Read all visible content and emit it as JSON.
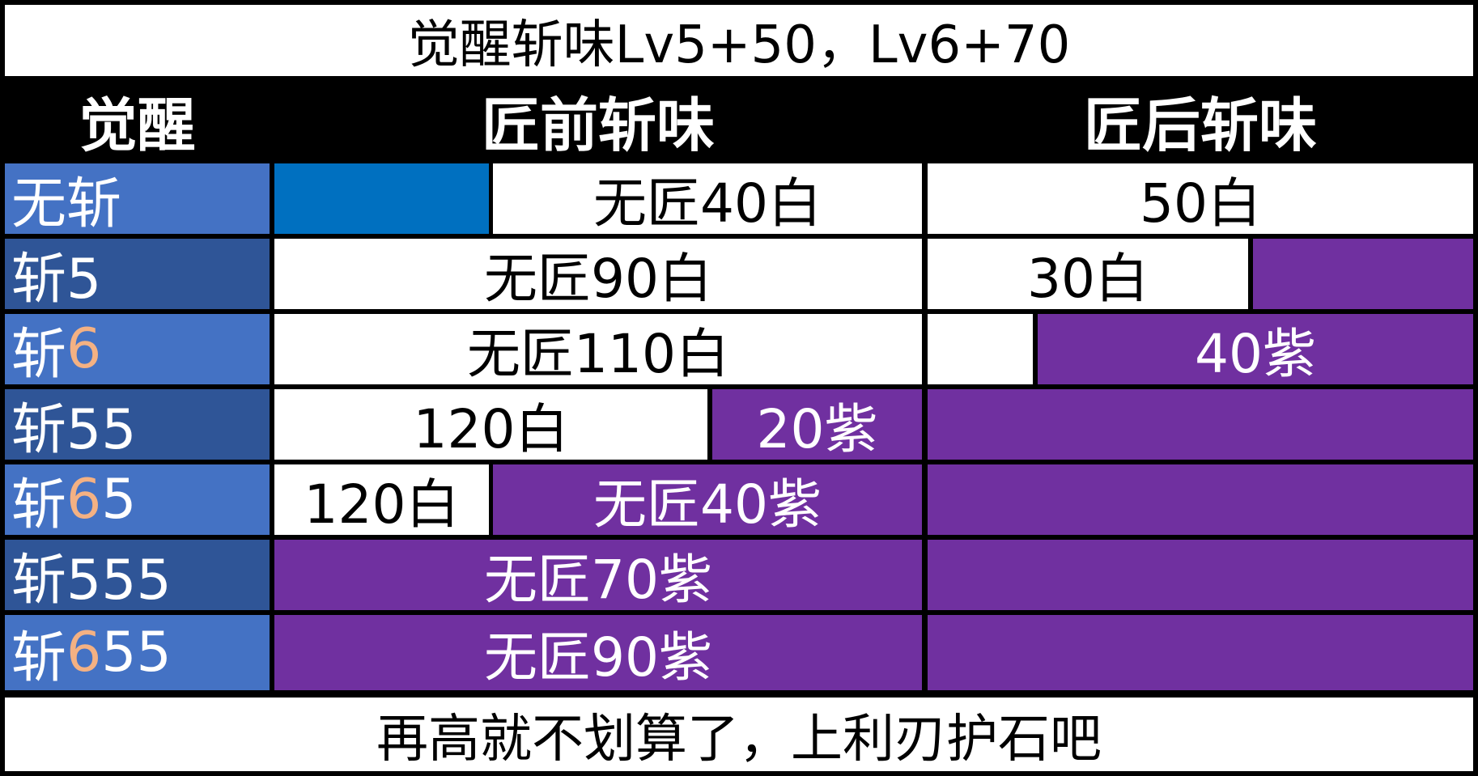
{
  "title": "觉醒斩味Lv5+50，Lv6+70",
  "headers": {
    "awakening": "觉醒",
    "before": "匠前斩味",
    "after": "匠后斩味"
  },
  "rows": [
    {
      "prefix": "无斩",
      "highlight": "",
      "suffix": ""
    },
    {
      "prefix": "斩5",
      "highlight": "",
      "suffix": ""
    },
    {
      "prefix": "斩",
      "highlight": "6",
      "suffix": ""
    },
    {
      "prefix": "斩55",
      "highlight": "",
      "suffix": ""
    },
    {
      "prefix": "斩",
      "highlight": "6",
      "suffix": "5"
    },
    {
      "prefix": "斩555",
      "highlight": "",
      "suffix": ""
    },
    {
      "prefix": "斩",
      "highlight": "6",
      "suffix": "55"
    }
  ],
  "cells": {
    "r0_before": "无匠40白",
    "r0_after": "50白",
    "r1_before": "无匠90白",
    "r1_after_white": "30白",
    "r2_before": "无匠110白",
    "r2_after_purple": "40紫",
    "r3_before_white": "120白",
    "r3_before_purple": "20紫",
    "r4_before_white": "120白",
    "r4_before_purple": "无匠40紫",
    "r5_before": "无匠70紫",
    "r6_before": "无匠90紫"
  },
  "footer": "再高就不划算了，上利刃护石吧",
  "colors": {
    "label_light": "#4472c4",
    "label_dark": "#2f5597",
    "highlight": "#f4b183",
    "white_sharpness": "#ffffff",
    "purple_sharpness": "#7030a0",
    "blue_sharpness": "#0070c0",
    "background": "#000000"
  }
}
